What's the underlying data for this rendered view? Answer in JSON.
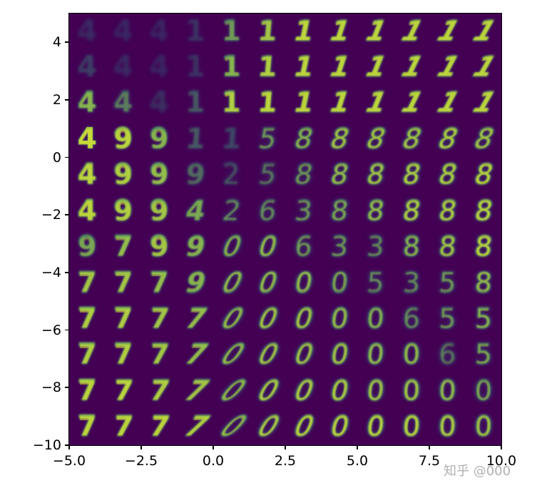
{
  "chart_data": {
    "type": "heatmap",
    "title": "",
    "description": "VAE latent-space manifold: 12x12 grid of decoded MNIST digits sampled over a 2D latent space",
    "xlabel": "",
    "ylabel": "",
    "xlim": [
      -5.0,
      10.0
    ],
    "ylim": [
      -10,
      5
    ],
    "x_ticks": [
      -5.0,
      -2.5,
      0.0,
      2.5,
      5.0,
      7.5,
      10.0
    ],
    "x_tick_labels": [
      "−5.0",
      "−2.5",
      "0.0",
      "2.5",
      "5.0",
      "7.5",
      "10.0"
    ],
    "y_ticks": [
      4,
      2,
      0,
      -2,
      -4,
      -6,
      -8,
      -10
    ],
    "y_tick_labels": [
      "4",
      "2",
      "0",
      "−2",
      "−4",
      "−6",
      "−8",
      "−10"
    ],
    "grid": false,
    "colormap": "viridis",
    "grid_rows": 12,
    "grid_cols": 12,
    "digit_grid": [
      [
        "4",
        "4",
        "4",
        "1",
        "1",
        "1",
        "1",
        "1",
        "1",
        "1",
        "1",
        "1"
      ],
      [
        "4",
        "4",
        "4",
        "1",
        "1",
        "1",
        "1",
        "1",
        "1",
        "1",
        "1",
        "1"
      ],
      [
        "4",
        "4",
        "4",
        "1",
        "1",
        "1",
        "1",
        "1",
        "1",
        "1",
        "1",
        "1"
      ],
      [
        "4",
        "9",
        "9",
        "1",
        "1",
        "5",
        "8",
        "8",
        "8",
        "8",
        "8",
        "8"
      ],
      [
        "4",
        "9",
        "9",
        "9",
        "2",
        "5",
        "8",
        "8",
        "8",
        "8",
        "8",
        "8"
      ],
      [
        "4",
        "9",
        "9",
        "4",
        "2",
        "6",
        "3",
        "8",
        "8",
        "8",
        "8",
        "8"
      ],
      [
        "9",
        "7",
        "9",
        "9",
        "0",
        "0",
        "6",
        "3",
        "3",
        "8",
        "8",
        "8"
      ],
      [
        "7",
        "7",
        "7",
        "9",
        "0",
        "0",
        "0",
        "0",
        "5",
        "3",
        "5",
        "8"
      ],
      [
        "7",
        "7",
        "7",
        "7",
        "0",
        "0",
        "0",
        "0",
        "0",
        "6",
        "5",
        "5"
      ],
      [
        "7",
        "7",
        "7",
        "7",
        "0",
        "0",
        "0",
        "0",
        "0",
        "0",
        "6",
        "5"
      ],
      [
        "7",
        "7",
        "7",
        "7",
        "0",
        "0",
        "0",
        "0",
        "0",
        "0",
        "0",
        "0"
      ],
      [
        "7",
        "7",
        "7",
        "7",
        "0",
        "0",
        "0",
        "0",
        "0",
        "0",
        "0",
        "0"
      ]
    ],
    "clarity_grid": [
      [
        0.15,
        0.1,
        0.08,
        0.25,
        0.6,
        0.8,
        0.9,
        0.9,
        0.9,
        0.9,
        0.9,
        0.9
      ],
      [
        0.3,
        0.12,
        0.08,
        0.25,
        0.7,
        0.85,
        0.9,
        0.9,
        0.9,
        0.9,
        0.9,
        0.9
      ],
      [
        0.7,
        0.5,
        0.2,
        0.4,
        0.85,
        0.9,
        0.9,
        0.9,
        0.9,
        0.9,
        0.9,
        0.9
      ],
      [
        0.95,
        0.9,
        0.7,
        0.4,
        0.35,
        0.6,
        0.7,
        0.8,
        0.8,
        0.8,
        0.85,
        0.8
      ],
      [
        0.9,
        0.85,
        0.75,
        0.45,
        0.4,
        0.5,
        0.6,
        0.75,
        0.8,
        0.85,
        0.85,
        0.9
      ],
      [
        0.9,
        0.85,
        0.8,
        0.65,
        0.55,
        0.55,
        0.6,
        0.65,
        0.75,
        0.85,
        0.85,
        0.9
      ],
      [
        0.65,
        0.75,
        0.8,
        0.7,
        0.7,
        0.75,
        0.6,
        0.6,
        0.55,
        0.7,
        0.8,
        0.9
      ],
      [
        0.8,
        0.8,
        0.75,
        0.7,
        0.75,
        0.75,
        0.75,
        0.65,
        0.55,
        0.55,
        0.6,
        0.75
      ],
      [
        0.85,
        0.85,
        0.8,
        0.75,
        0.75,
        0.8,
        0.8,
        0.75,
        0.7,
        0.55,
        0.6,
        0.7
      ],
      [
        0.85,
        0.85,
        0.8,
        0.75,
        0.75,
        0.8,
        0.8,
        0.8,
        0.75,
        0.75,
        0.5,
        0.65
      ],
      [
        0.9,
        0.9,
        0.85,
        0.8,
        0.75,
        0.85,
        0.85,
        0.85,
        0.8,
        0.8,
        0.75,
        0.65
      ],
      [
        0.9,
        0.9,
        0.9,
        0.85,
        0.75,
        0.85,
        0.9,
        0.9,
        0.9,
        0.9,
        0.85,
        0.8
      ]
    ],
    "slant_grid": [
      [
        0,
        0,
        0,
        0,
        0,
        5,
        12,
        18,
        22,
        26,
        28,
        30
      ],
      [
        0,
        0,
        0,
        0,
        0,
        5,
        12,
        18,
        22,
        26,
        28,
        30
      ],
      [
        0,
        0,
        0,
        0,
        0,
        5,
        12,
        18,
        22,
        26,
        28,
        30
      ],
      [
        0,
        0,
        0,
        5,
        5,
        10,
        14,
        16,
        18,
        18,
        20,
        20
      ],
      [
        0,
        0,
        0,
        5,
        0,
        10,
        12,
        12,
        12,
        12,
        14,
        14
      ],
      [
        0,
        0,
        0,
        10,
        10,
        8,
        6,
        8,
        8,
        10,
        10,
        10
      ],
      [
        0,
        0,
        0,
        10,
        20,
        16,
        6,
        4,
        4,
        4,
        6,
        6
      ],
      [
        0,
        0,
        0,
        15,
        25,
        18,
        10,
        6,
        4,
        2,
        4,
        4
      ],
      [
        0,
        0,
        5,
        20,
        30,
        22,
        15,
        8,
        4,
        2,
        2,
        2
      ],
      [
        0,
        0,
        5,
        25,
        35,
        25,
        18,
        10,
        5,
        2,
        2,
        2
      ],
      [
        0,
        5,
        10,
        30,
        40,
        28,
        20,
        12,
        6,
        3,
        2,
        2
      ],
      [
        0,
        5,
        10,
        32,
        42,
        30,
        22,
        14,
        8,
        4,
        2,
        2
      ]
    ]
  },
  "watermark": "知乎 @000"
}
